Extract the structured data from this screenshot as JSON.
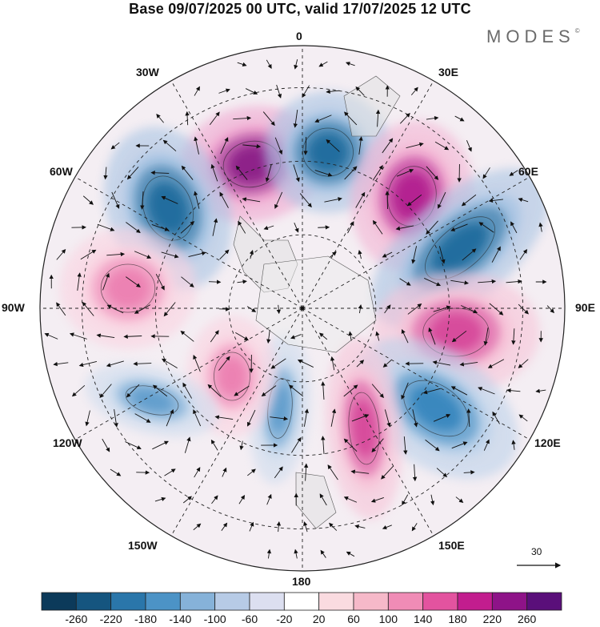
{
  "title": "Base 09/07/2025 00 UTC, valid 17/07/2025 12 UTC",
  "brand": "MODES",
  "brand_mark": "©",
  "map": {
    "projection": "north polar stereographic",
    "meridian_labels": [
      {
        "text": "0"
      },
      {
        "text": "30E"
      },
      {
        "text": "60E"
      },
      {
        "text": "90E"
      },
      {
        "text": "120E"
      },
      {
        "text": "150E"
      },
      {
        "text": "180"
      },
      {
        "text": "150W"
      },
      {
        "text": "120W"
      },
      {
        "text": "90W"
      },
      {
        "text": "60W"
      },
      {
        "text": "30W"
      }
    ],
    "reference_vector": "30",
    "anomaly_centers": [
      {
        "sign": "positive",
        "level": 260,
        "color": "#8a1a86"
      },
      {
        "sign": "negative",
        "level": -220,
        "color": "#1f6a9c"
      },
      {
        "sign": "positive",
        "level": 220,
        "color": "#b11e8e"
      },
      {
        "sign": "negative",
        "level": -220,
        "color": "#1f6a9c"
      },
      {
        "sign": "negative",
        "level": -220,
        "color": "#1f6a9c"
      },
      {
        "sign": "positive",
        "level": 180,
        "color": "#d6479a"
      },
      {
        "sign": "negative",
        "level": -180,
        "color": "#3585bd"
      },
      {
        "sign": "positive",
        "level": 180,
        "color": "#d6479a"
      },
      {
        "sign": "negative",
        "level": -140,
        "color": "#5e9ccc"
      },
      {
        "sign": "positive",
        "level": 140,
        "color": "#ec7fb1"
      },
      {
        "sign": "positive",
        "level": 140,
        "color": "#ec7fb1"
      },
      {
        "sign": "negative",
        "level": -140,
        "color": "#5e9ccc"
      }
    ]
  },
  "colorbar": {
    "colors": [
      "#0c3a5a",
      "#15557f",
      "#2a76aa",
      "#4c93c6",
      "#86b2d9",
      "#b7cbe6",
      "#dcdff0",
      "#ffffff",
      "#fadbe0",
      "#f6b9c9",
      "#f08cb6",
      "#e3539f",
      "#c21d8e",
      "#8e1388",
      "#5a0f7a"
    ],
    "labels": [
      "-260",
      "-220",
      "-180",
      "-140",
      "-100",
      "-60",
      "-20",
      "20",
      "60",
      "100",
      "140",
      "180",
      "220",
      "260"
    ]
  }
}
